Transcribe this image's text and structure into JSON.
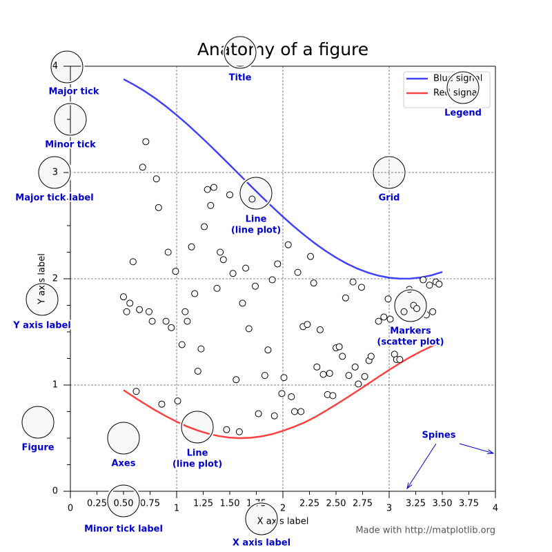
{
  "chart_data": {
    "type": "line",
    "title": "Anatomy of a figure",
    "xlabel": "X axis label",
    "ylabel": "Y axis label",
    "xlim": [
      0,
      4
    ],
    "ylim": [
      0,
      4
    ],
    "xticks": [
      0,
      1,
      2,
      3,
      4
    ],
    "xminorticks": [
      0.25,
      {
        "value": 0.5,
        "label": "0.50"
      },
      0.75,
      1.25,
      {
        "value": 1.5,
        "label": "1.50"
      },
      1.75,
      2.25,
      {
        "value": 2.5,
        "label": "2.50"
      },
      2.75,
      3.25,
      {
        "value": 3.5,
        "label": "3.50"
      },
      3.75
    ],
    "yticks": [
      0,
      1,
      2,
      3,
      4
    ],
    "yminorticks": [
      0.25,
      0.5,
      0.75,
      1.25,
      1.5,
      1.75,
      2.25,
      2.5,
      2.75,
      3.25,
      3.5,
      3.75
    ],
    "grid": true,
    "legend": "upper right",
    "series": [
      {
        "name": "Blue signal",
        "color": "#4040ff",
        "x": [
          0.5,
          0.6,
          0.7,
          0.8,
          0.9,
          1.0,
          1.1,
          1.2,
          1.3,
          1.4,
          1.5,
          1.6,
          1.7,
          1.8,
          1.9,
          2.0,
          2.1,
          2.2,
          2.3,
          2.4,
          2.5,
          2.6,
          2.7,
          2.8,
          2.9,
          3.0,
          3.1,
          3.2,
          3.3,
          3.4,
          3.5
        ],
        "values": [
          3.878,
          3.825,
          3.765,
          3.697,
          3.622,
          3.54,
          3.454,
          3.362,
          3.268,
          3.17,
          3.071,
          2.971,
          2.871,
          2.773,
          2.677,
          2.584,
          2.495,
          2.412,
          2.334,
          2.263,
          2.199,
          2.143,
          2.096,
          2.058,
          2.029,
          2.01,
          2.001,
          2.002,
          2.012,
          2.033,
          2.064
        ]
      },
      {
        "name": "Red signal",
        "color": "#ff4040",
        "x": [
          0.5,
          0.6,
          0.7,
          0.8,
          0.9,
          1.0,
          1.1,
          1.2,
          1.3,
          1.4,
          1.5,
          1.6,
          1.7,
          1.8,
          1.9,
          2.0,
          2.1,
          2.2,
          2.3,
          2.4,
          2.5,
          2.6,
          2.7,
          2.8,
          2.9,
          3.0,
          3.1,
          3.2,
          3.3,
          3.4,
          3.5
        ],
        "values": [
          0.952,
          0.886,
          0.823,
          0.762,
          0.706,
          0.655,
          0.609,
          0.572,
          0.541,
          0.519,
          0.505,
          0.5,
          0.504,
          0.517,
          0.538,
          0.569,
          0.605,
          0.646,
          0.697,
          0.755,
          0.816,
          0.879,
          0.944,
          1.01,
          1.077,
          1.142,
          1.205,
          1.264,
          1.317,
          1.365,
          1.406
        ]
      },
      {
        "type": "scatter",
        "color": "#000000",
        "x": [
          0.5,
          0.53,
          0.56,
          0.59,
          0.62,
          0.65,
          0.68,
          0.71,
          0.74,
          0.77,
          0.81,
          0.83,
          0.86,
          0.9,
          0.92,
          0.95,
          0.99,
          1.01,
          1.05,
          1.08,
          1.1,
          1.14,
          1.17,
          1.2,
          1.23,
          1.26,
          1.29,
          1.32,
          1.35,
          1.38,
          1.41,
          1.44,
          1.47,
          1.5,
          1.53,
          1.56,
          1.59,
          1.62,
          1.65,
          1.68,
          1.71,
          1.74,
          1.77,
          1.83,
          1.86,
          1.9,
          1.92,
          1.95,
          1.99,
          2.01,
          2.05,
          2.08,
          2.11,
          2.14,
          2.17,
          2.19,
          2.23,
          2.26,
          2.29,
          2.32,
          2.35,
          2.38,
          2.42,
          2.44,
          2.47,
          2.5,
          2.53,
          2.56,
          2.59,
          2.62,
          2.66,
          2.68,
          2.71,
          2.74,
          2.77,
          2.81,
          2.83,
          2.9,
          2.95,
          2.99,
          3.01,
          3.05,
          3.07,
          3.1,
          3.14,
          3.19,
          3.23,
          3.26,
          3.32,
          3.35,
          3.38,
          3.41,
          3.44,
          3.47
        ],
        "values": [
          1.83,
          1.69,
          1.77,
          2.16,
          0.94,
          1.71,
          3.05,
          3.29,
          1.69,
          1.6,
          2.94,
          2.67,
          0.82,
          1.6,
          2.25,
          1.54,
          2.07,
          0.85,
          1.38,
          1.69,
          1.6,
          2.3,
          1.86,
          1.13,
          1.34,
          2.49,
          2.84,
          2.69,
          2.86,
          1.91,
          2.25,
          2.18,
          0.58,
          2.79,
          2.05,
          1.05,
          0.56,
          1.77,
          2.1,
          1.53,
          2.75,
          1.93,
          0.73,
          1.09,
          1.33,
          1.99,
          0.71,
          2.14,
          0.92,
          1.07,
          2.32,
          0.89,
          0.75,
          2.06,
          0.75,
          1.55,
          1.57,
          2.21,
          1.96,
          1.17,
          1.52,
          1.1,
          0.91,
          1.11,
          0.9,
          1.35,
          1.36,
          1.27,
          1.82,
          1.09,
          1.97,
          1.17,
          1.01,
          1.92,
          1.08,
          1.23,
          1.27,
          1.6,
          1.64,
          1.81,
          1.62,
          1.29,
          1.24,
          1.24,
          1.69,
          1.9,
          1.75,
          1.72,
          1.99,
          1.66,
          1.94,
          1.69,
          1.97,
          1.95
        ]
      }
    ],
    "annotations": [
      {
        "lines": [
          "Major tick"
        ]
      },
      {
        "lines": [
          "Minor tick"
        ]
      },
      {
        "lines": [
          "Major tick label"
        ]
      },
      {
        "lines": [
          "Minor tick label"
        ]
      },
      {
        "lines": [
          "Y axis label"
        ]
      },
      {
        "lines": [
          "X axis label"
        ]
      },
      {
        "lines": [
          "Title"
        ]
      },
      {
        "lines": [
          "Legend"
        ]
      },
      {
        "lines": [
          "Grid"
        ]
      },
      {
        "lines": [
          "Line",
          "(line plot)"
        ]
      },
      {
        "lines": [
          "Markers",
          "(scatter plot)"
        ]
      },
      {
        "lines": [
          "Line",
          "(line plot)"
        ]
      },
      {
        "lines": [
          "Spines"
        ]
      },
      {
        "lines": [
          "Figure"
        ]
      },
      {
        "lines": [
          "Axes"
        ]
      }
    ],
    "footer": "Made with http://matplotlib.org"
  }
}
